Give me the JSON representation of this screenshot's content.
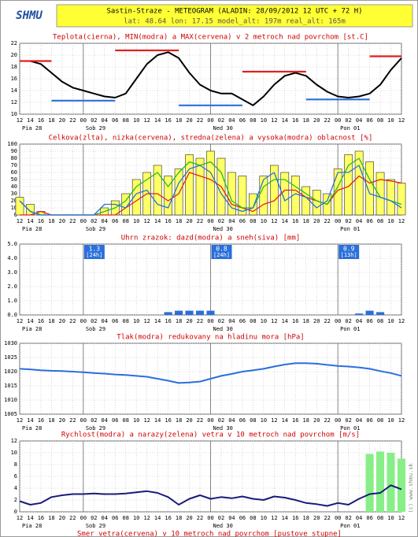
{
  "header": {
    "logo": "SHMU",
    "title": "Sastin-Straze - METEOGRAM (ALADIN: 28/09/2012 12 UTC + 72 H)",
    "subtitle": "lat: 48.64  lon: 17.15  model_alt: 197m  real_alt: 165m"
  },
  "chart_data": [
    {
      "type": "line",
      "title": "Teplota(cierna), MIN(modra) a MAX(cervena) v 2 metroch nad povrchom [st.C]",
      "categories": [
        "12",
        "14",
        "16",
        "18",
        "20",
        "22",
        "00",
        "02",
        "04",
        "06",
        "08",
        "10",
        "12",
        "14",
        "16",
        "18",
        "20",
        "22",
        "00",
        "02",
        "04",
        "06",
        "08",
        "10",
        "12",
        "14",
        "16",
        "18",
        "20",
        "22",
        "00",
        "02",
        "04",
        "06",
        "08",
        "10",
        "12"
      ],
      "days": [
        "Pia 28",
        "Sob 29",
        "Ned 30",
        "Pon 01"
      ],
      "ylim": [
        10,
        22
      ],
      "yticks": [
        10,
        12,
        14,
        16,
        18,
        20,
        22
      ],
      "grid": true,
      "series": [
        {
          "name": "Teplota",
          "type": "line",
          "color": "#000000",
          "values": [
            19,
            19,
            18.5,
            17,
            15.5,
            14.5,
            14,
            13.5,
            13,
            12.8,
            13.5,
            16,
            18.5,
            20,
            20.5,
            19.5,
            17,
            15,
            14,
            13.5,
            13.5,
            12.5,
            11.5,
            13,
            15,
            16.5,
            17,
            16.5,
            15,
            13.8,
            13,
            12.8,
            13,
            13.5,
            15,
            17.5,
            19.5
          ]
        },
        {
          "name": "MAX",
          "type": "segment",
          "color": "#e02020",
          "values": [
            19,
            19,
            19,
            19,
            null,
            null,
            null,
            null,
            null,
            20.8,
            20.8,
            20.8,
            20.8,
            20.8,
            20.8,
            20.8,
            null,
            null,
            null,
            null,
            null,
            17.2,
            17.2,
            17.2,
            17.2,
            17.2,
            17.2,
            17.2,
            null,
            null,
            null,
            null,
            null,
            19.8,
            19.8,
            19.8,
            19.8
          ]
        },
        {
          "name": "MIN",
          "type": "segment",
          "color": "#2a6fdb",
          "values": [
            null,
            null,
            null,
            12.3,
            12.3,
            12.3,
            12.3,
            12.3,
            12.3,
            12.3,
            null,
            null,
            null,
            null,
            null,
            11.5,
            11.5,
            11.5,
            11.5,
            11.5,
            11.5,
            11.5,
            null,
            null,
            null,
            null,
            null,
            12.5,
            12.5,
            12.5,
            12.5,
            12.5,
            12.5,
            12.5,
            null,
            null,
            null
          ]
        }
      ]
    },
    {
      "type": "bar",
      "title": "Celkova(zlta), nizka(cervena), stredna(zelena) a vysoka(modra) oblacnost [%]",
      "categories": [
        "12",
        "14",
        "16",
        "18",
        "20",
        "22",
        "00",
        "02",
        "04",
        "06",
        "08",
        "10",
        "12",
        "14",
        "16",
        "18",
        "20",
        "22",
        "00",
        "02",
        "04",
        "06",
        "08",
        "10",
        "12",
        "14",
        "16",
        "18",
        "20",
        "22",
        "00",
        "02",
        "04",
        "06",
        "08",
        "10",
        "12"
      ],
      "days": [
        "Pia 28",
        "Sob 29",
        "Ned 30",
        "Pon 01"
      ],
      "ylim": [
        0,
        100
      ],
      "yticks": [
        0,
        10,
        20,
        30,
        40,
        50,
        60,
        70,
        80,
        90,
        100
      ],
      "grid": true,
      "series": [
        {
          "name": "Celkova",
          "type": "bar",
          "color": "#ffff66",
          "values": [
            25,
            15,
            5,
            0,
            0,
            0,
            0,
            0,
            10,
            20,
            30,
            50,
            60,
            70,
            55,
            65,
            85,
            80,
            90,
            80,
            60,
            55,
            30,
            55,
            70,
            60,
            55,
            40,
            35,
            30,
            65,
            85,
            90,
            75,
            60,
            50,
            45
          ]
        },
        {
          "name": "nizka",
          "type": "line",
          "color": "#e02020",
          "values": [
            0,
            0,
            5,
            0,
            0,
            0,
            0,
            0,
            0,
            0,
            10,
            20,
            30,
            30,
            20,
            30,
            60,
            55,
            50,
            40,
            15,
            10,
            5,
            15,
            20,
            35,
            35,
            25,
            20,
            15,
            35,
            40,
            55,
            45,
            50,
            48,
            45
          ]
        },
        {
          "name": "stredna",
          "type": "line",
          "color": "#22bb22",
          "values": [
            20,
            5,
            0,
            0,
            0,
            0,
            0,
            0,
            5,
            10,
            20,
            40,
            50,
            60,
            40,
            60,
            75,
            70,
            75,
            60,
            20,
            10,
            10,
            40,
            50,
            50,
            40,
            30,
            20,
            15,
            40,
            70,
            80,
            50,
            25,
            20,
            15
          ]
        },
        {
          "name": "vysoka",
          "type": "line",
          "color": "#2a6fdb",
          "values": [
            20,
            5,
            0,
            0,
            0,
            0,
            0,
            0,
            15,
            15,
            10,
            30,
            35,
            15,
            10,
            45,
            65,
            70,
            60,
            30,
            10,
            5,
            10,
            50,
            60,
            20,
            30,
            25,
            10,
            20,
            60,
            60,
            70,
            30,
            25,
            20,
            10
          ]
        }
      ]
    },
    {
      "type": "bar",
      "title": "Uhrn zrazok: dazd(modra) a sneh(siva) [mm]",
      "categories": [
        "12",
        "14",
        "16",
        "18",
        "20",
        "22",
        "00",
        "02",
        "04",
        "06",
        "08",
        "10",
        "12",
        "14",
        "16",
        "18",
        "20",
        "22",
        "00",
        "02",
        "04",
        "06",
        "08",
        "10",
        "12",
        "14",
        "16",
        "18",
        "20",
        "22",
        "00",
        "02",
        "04",
        "06",
        "08",
        "10",
        "12"
      ],
      "days": [
        "Pia 28",
        "Sob 29",
        "Ned 30",
        "Pon 01"
      ],
      "totals": [
        null,
        1.3,
        0.8,
        0.9
      ],
      "periods": [
        null,
        "[24h]",
        "[24h]",
        "[13h]"
      ],
      "ylim": [
        0,
        5
      ],
      "yticks": [
        {
          "value": 0,
          "label": "0.0"
        },
        {
          "value": 1,
          "label": "1.0"
        },
        {
          "value": 2,
          "label": "2.0"
        },
        {
          "value": 3,
          "label": "3.0"
        },
        {
          "value": 4,
          "label": "4.0"
        },
        {
          "value": 5,
          "label": "5.0"
        }
      ],
      "grid": true,
      "series": [
        {
          "name": "dazd",
          "type": "bar",
          "color": "#2a6fdb",
          "values": [
            0,
            0,
            0,
            0,
            0,
            0,
            0,
            0,
            0,
            0,
            0,
            0,
            0,
            0,
            0.2,
            0.3,
            0.3,
            0.3,
            0.3,
            0,
            0,
            0,
            0,
            0,
            0,
            0,
            0,
            0,
            0,
            0,
            0,
            0,
            0.1,
            0.3,
            0.2,
            0,
            0
          ]
        }
      ]
    },
    {
      "type": "line",
      "title": "Tlak(modra) redukovany na hladinu mora [hPa]",
      "categories": [
        "12",
        "14",
        "16",
        "18",
        "20",
        "22",
        "00",
        "02",
        "04",
        "06",
        "08",
        "10",
        "12",
        "14",
        "16",
        "18",
        "20",
        "22",
        "00",
        "02",
        "04",
        "06",
        "08",
        "10",
        "12",
        "14",
        "16",
        "18",
        "20",
        "22",
        "00",
        "02",
        "04",
        "06",
        "08",
        "10",
        "12"
      ],
      "days": [
        "Pia 28",
        "Sob 29",
        "Ned 30",
        "Pon 01"
      ],
      "ylim": [
        1005,
        1030
      ],
      "yticks": [
        1005,
        1010,
        1015,
        1020,
        1025,
        1030
      ],
      "grid": true,
      "series": [
        {
          "name": "Tlak",
          "type": "line",
          "color": "#2a6fdb",
          "values": [
            1021,
            1020.8,
            1020.5,
            1020.3,
            1020.2,
            1020,
            1019.8,
            1019.5,
            1019.3,
            1019,
            1018.8,
            1018.5,
            1018.2,
            1017.5,
            1016.8,
            1016,
            1016.2,
            1016.5,
            1017.5,
            1018.5,
            1019.2,
            1020,
            1020.5,
            1021,
            1021.8,
            1022.5,
            1023,
            1023,
            1022.8,
            1022.4,
            1022,
            1021.8,
            1021.5,
            1021,
            1020.2,
            1019.5,
            1018.5
          ]
        }
      ]
    },
    {
      "type": "line",
      "title": "Rychlost(modra) a narazy(zelena) vetra v 10 metroch nad povrchom [m/s]",
      "categories": [
        "12",
        "14",
        "16",
        "18",
        "20",
        "22",
        "00",
        "02",
        "04",
        "06",
        "08",
        "10",
        "12",
        "14",
        "16",
        "18",
        "20",
        "22",
        "00",
        "02",
        "04",
        "06",
        "08",
        "10",
        "12",
        "14",
        "16",
        "18",
        "20",
        "22",
        "00",
        "02",
        "04",
        "06",
        "08",
        "10",
        "12"
      ],
      "days": [
        "Pia 28",
        "Sob 29",
        "Ned 30",
        "Pon 01"
      ],
      "ylim": [
        0,
        12
      ],
      "yticks": [
        0,
        2,
        4,
        6,
        8,
        10,
        12
      ],
      "grid": true,
      "series": [
        {
          "name": "narazy",
          "type": "bar",
          "color": "#88ee88",
          "values": [
            null,
            null,
            null,
            null,
            null,
            null,
            null,
            null,
            null,
            null,
            null,
            null,
            null,
            null,
            null,
            null,
            null,
            null,
            null,
            null,
            null,
            null,
            null,
            null,
            null,
            null,
            null,
            null,
            null,
            null,
            null,
            null,
            null,
            9.8,
            10.2,
            10,
            9
          ]
        },
        {
          "name": "Rychlost",
          "type": "line",
          "color": "#1a1a7a",
          "values": [
            1.8,
            1.2,
            1.5,
            2.5,
            2.8,
            3,
            3,
            3.1,
            3,
            3,
            3.1,
            3.3,
            3.5,
            3.2,
            2.5,
            1.2,
            2.2,
            2.8,
            2.2,
            2.5,
            2.3,
            2.6,
            2.2,
            2,
            2.6,
            2.4,
            2,
            1.5,
            1.3,
            1,
            1.5,
            1.2,
            2.2,
            3,
            3.2,
            4.5,
            3.8
          ]
        }
      ]
    }
  ],
  "footer_title": "Smer vetra(cervena) v 10 metroch nad povrchom [pustove stupne]",
  "copyright": "(c) www.shmu.sk"
}
